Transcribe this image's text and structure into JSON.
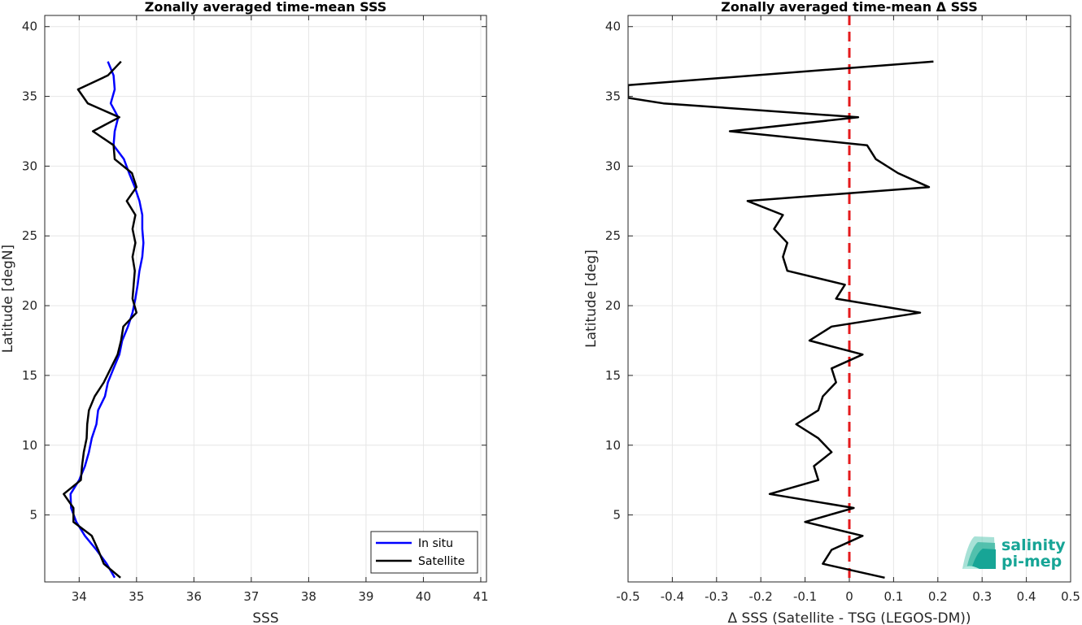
{
  "chart_data": [
    {
      "type": "line",
      "title": "Zonally averaged time-mean SSS",
      "xlabel": "SSS",
      "ylabel": "Latitude [degN]",
      "xlim": [
        33.4,
        41.1
      ],
      "ylim": [
        0.2,
        40.8
      ],
      "xticks": [
        34,
        35,
        36,
        37,
        38,
        39,
        40,
        41
      ],
      "xticklabels": [
        "34",
        "35",
        "36",
        "37",
        "38",
        "39",
        "40",
        "41"
      ],
      "yticks": [
        5,
        10,
        15,
        20,
        25,
        30,
        35,
        40
      ],
      "grid": true,
      "legend": "bottom-right",
      "series": [
        {
          "name": "In situ",
          "color": "#0000ff",
          "points": [
            [
              34.5,
              37.5
            ],
            [
              34.6,
              36.5
            ],
            [
              34.62,
              35.5
            ],
            [
              34.55,
              34.5
            ],
            [
              34.68,
              33.5
            ],
            [
              34.62,
              32.5
            ],
            [
              34.6,
              31.5
            ],
            [
              34.78,
              30.5
            ],
            [
              34.87,
              29.5
            ],
            [
              34.97,
              28.5
            ],
            [
              35.05,
              27.5
            ],
            [
              35.1,
              26.5
            ],
            [
              35.1,
              25.5
            ],
            [
              35.12,
              24.5
            ],
            [
              35.1,
              23.5
            ],
            [
              35.05,
              22.5
            ],
            [
              35.02,
              21.5
            ],
            [
              34.98,
              20.5
            ],
            [
              34.93,
              19.5
            ],
            [
              34.85,
              18.5
            ],
            [
              34.75,
              17.5
            ],
            [
              34.7,
              16.5
            ],
            [
              34.6,
              15.5
            ],
            [
              34.5,
              14.5
            ],
            [
              34.45,
              13.5
            ],
            [
              34.33,
              12.5
            ],
            [
              34.3,
              11.5
            ],
            [
              34.22,
              10.5
            ],
            [
              34.17,
              9.5
            ],
            [
              34.1,
              8.5
            ],
            [
              34.0,
              7.5
            ],
            [
              33.85,
              6.5
            ],
            [
              33.86,
              5.5
            ],
            [
              33.95,
              4.5
            ],
            [
              34.1,
              3.5
            ],
            [
              34.3,
              2.5
            ],
            [
              34.48,
              1.5
            ],
            [
              34.62,
              0.5
            ]
          ]
        },
        {
          "name": "Satellite",
          "color": "#000000",
          "points": [
            [
              34.73,
              37.5
            ],
            [
              34.5,
              36.5
            ],
            [
              33.98,
              35.5
            ],
            [
              34.15,
              34.5
            ],
            [
              34.7,
              33.5
            ],
            [
              34.24,
              32.5
            ],
            [
              34.6,
              31.5
            ],
            [
              34.62,
              30.5
            ],
            [
              34.92,
              29.5
            ],
            [
              35.0,
              28.5
            ],
            [
              34.83,
              27.5
            ],
            [
              34.98,
              26.5
            ],
            [
              34.93,
              25.5
            ],
            [
              34.98,
              24.5
            ],
            [
              34.93,
              23.5
            ],
            [
              34.97,
              22.5
            ],
            [
              34.95,
              21.5
            ],
            [
              34.93,
              20.5
            ],
            [
              35.0,
              19.5
            ],
            [
              34.77,
              18.5
            ],
            [
              34.73,
              17.5
            ],
            [
              34.67,
              16.5
            ],
            [
              34.55,
              15.5
            ],
            [
              34.43,
              14.5
            ],
            [
              34.27,
              13.5
            ],
            [
              34.17,
              12.5
            ],
            [
              34.14,
              11.5
            ],
            [
              34.13,
              10.5
            ],
            [
              34.08,
              9.5
            ],
            [
              34.05,
              8.5
            ],
            [
              34.03,
              7.5
            ],
            [
              33.73,
              6.5
            ],
            [
              33.9,
              5.5
            ],
            [
              33.9,
              4.5
            ],
            [
              34.22,
              3.5
            ],
            [
              34.33,
              2.5
            ],
            [
              34.43,
              1.5
            ],
            [
              34.72,
              0.5
            ]
          ]
        }
      ]
    },
    {
      "type": "line",
      "title": "Zonally averaged time-mean Δ SSS",
      "xlabel": "Δ SSS (Satellite - TSG (LEGOS-DM))",
      "ylabel": "Latitude [deg]",
      "xlim": [
        -0.5,
        0.5
      ],
      "ylim": [
        0.2,
        40.8
      ],
      "xticks": [
        -0.5,
        -0.4,
        -0.3,
        -0.2,
        -0.1,
        0,
        0.1,
        0.2,
        0.3,
        0.4,
        0.5
      ],
      "xticklabels": [
        "-0.5",
        "-0.4",
        "-0.3",
        "-0.2",
        "-0.1",
        "0",
        "0.1",
        "0.2",
        "0.3",
        "0.4",
        "0.5"
      ],
      "yticks": [
        5,
        10,
        15,
        20,
        25,
        30,
        35,
        40
      ],
      "grid": true,
      "reference_line": {
        "x": 0,
        "color": "#e41a1c",
        "style": "dashed"
      },
      "series": [
        {
          "name": "",
          "color": "#000000",
          "points": [
            [
              0.19,
              37.5
            ],
            [
              -0.5,
              35.8
            ],
            [
              -0.5,
              34.9
            ],
            [
              -0.42,
              34.5
            ],
            [
              0.02,
              33.5
            ],
            [
              -0.27,
              32.5
            ],
            [
              0.04,
              31.5
            ],
            [
              0.06,
              30.5
            ],
            [
              0.11,
              29.5
            ],
            [
              0.18,
              28.5
            ],
            [
              -0.23,
              27.5
            ],
            [
              -0.15,
              26.5
            ],
            [
              -0.17,
              25.5
            ],
            [
              -0.14,
              24.5
            ],
            [
              -0.15,
              23.5
            ],
            [
              -0.14,
              22.5
            ],
            [
              -0.01,
              21.5
            ],
            [
              -0.03,
              20.5
            ],
            [
              0.16,
              19.5
            ],
            [
              -0.04,
              18.5
            ],
            [
              -0.09,
              17.5
            ],
            [
              0.03,
              16.5
            ],
            [
              -0.04,
              15.5
            ],
            [
              -0.03,
              14.5
            ],
            [
              -0.06,
              13.5
            ],
            [
              -0.07,
              12.5
            ],
            [
              -0.12,
              11.5
            ],
            [
              -0.07,
              10.5
            ],
            [
              -0.04,
              9.5
            ],
            [
              -0.08,
              8.5
            ],
            [
              -0.07,
              7.5
            ],
            [
              -0.18,
              6.5
            ],
            [
              0.01,
              5.5
            ],
            [
              -0.1,
              4.5
            ],
            [
              0.03,
              3.5
            ],
            [
              -0.04,
              2.5
            ],
            [
              -0.06,
              1.5
            ],
            [
              0.08,
              0.5
            ]
          ]
        }
      ]
    }
  ],
  "logo": {
    "line1": "salinity",
    "line2": "pi-mep"
  }
}
